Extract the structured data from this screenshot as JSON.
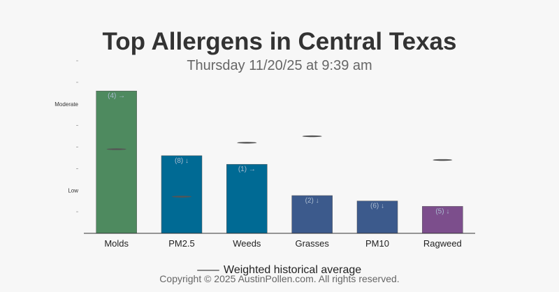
{
  "header": {
    "title": "Top Allergens in Central Texas",
    "subtitle": "Thursday 11/20/25 at 9:39 am"
  },
  "legend": {
    "label": "Weighted historical average",
    "line_color": "#888888"
  },
  "footer": {
    "copyright": "Copyright © 2025 AustinPollen.com.  All rights reserved."
  },
  "chart_data": {
    "type": "bar",
    "title": "Top Allergens in Central Texas",
    "subtitle": "Thursday 11/20/25 at 9:39 am",
    "categories": [
      "Molds",
      "PM2.5",
      "Weeds",
      "Grasses",
      "PM10",
      "Ragweed"
    ],
    "values": [
      6.6,
      3.6,
      3.2,
      1.75,
      1.5,
      1.25
    ],
    "bar_labels": [
      "(4) →",
      "(8) ↓",
      "(1) →",
      "(2) ↓",
      "(6) ↓",
      "(5) ↓"
    ],
    "colors": [
      "#4e8a5f",
      "#006a94",
      "#006a94",
      "#3c5a8c",
      "#3c5a8c",
      "#7c4e8c"
    ],
    "historical_average": [
      3.9,
      1.7,
      4.2,
      4.5,
      null,
      3.4
    ],
    "y_tick_labels": [
      {
        "value": 2,
        "label": "Low"
      },
      {
        "value": 6,
        "label": "Moderate"
      }
    ],
    "y_minor_ticks": [
      1,
      3,
      4,
      5,
      7,
      8
    ],
    "ylim": [
      0,
      8
    ],
    "series": [
      {
        "name": "Weighted historical average",
        "values": [
          3.9,
          1.7,
          4.2,
          4.5,
          null,
          3.4
        ]
      }
    ],
    "legend_position": "bottom",
    "grid": false
  }
}
